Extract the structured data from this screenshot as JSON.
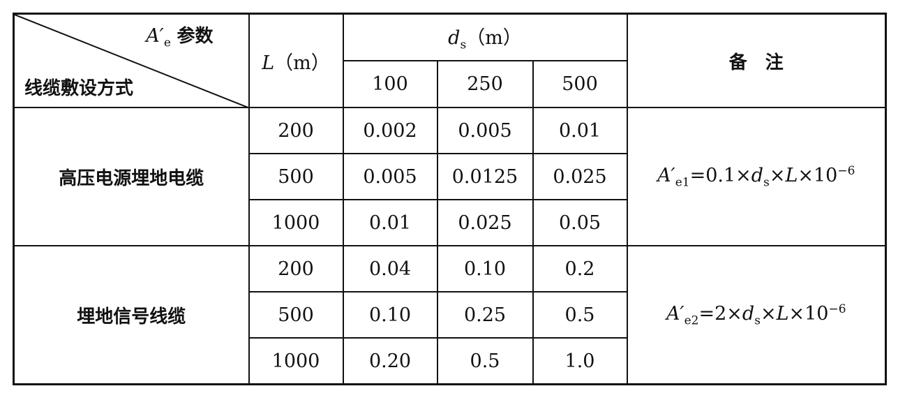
{
  "header": {
    "corner_top": [
      "A′",
      "e",
      "参数"
    ],
    "corner_bottom": "线缆敷设方式",
    "L_col": [
      "L",
      "（m）"
    ],
    "ds_col": [
      "d",
      "s",
      "（m）"
    ],
    "ds_values": [
      "100",
      "250",
      "500"
    ],
    "remark": "备　注"
  },
  "groups": [
    {
      "name": "高压电源埋地电缆",
      "rows": [
        {
          "L": "200",
          "values": [
            "0.002",
            "0.005",
            "0.01"
          ]
        },
        {
          "L": "500",
          "values": [
            "0.005",
            "0.0125",
            "0.025"
          ]
        },
        {
          "L": "1000",
          "values": [
            "0.01",
            "0.025",
            "0.05"
          ]
        }
      ],
      "remark": [
        "A′",
        "e1",
        "=0.1×",
        "d",
        "s",
        "×",
        "L",
        "×10",
        "−6"
      ]
    },
    {
      "name": "埋地信号线缆",
      "rows": [
        {
          "L": "200",
          "values": [
            "0.04",
            "0.10",
            "0.2"
          ]
        },
        {
          "L": "500",
          "values": [
            "0.10",
            "0.25",
            "0.5"
          ]
        },
        {
          "L": "1000",
          "values": [
            "0.20",
            "0.5",
            "1.0"
          ]
        }
      ],
      "remark": [
        "A′",
        "e2",
        "=2×",
        "d",
        "s",
        "×",
        "L",
        "×10",
        "−6"
      ]
    }
  ]
}
